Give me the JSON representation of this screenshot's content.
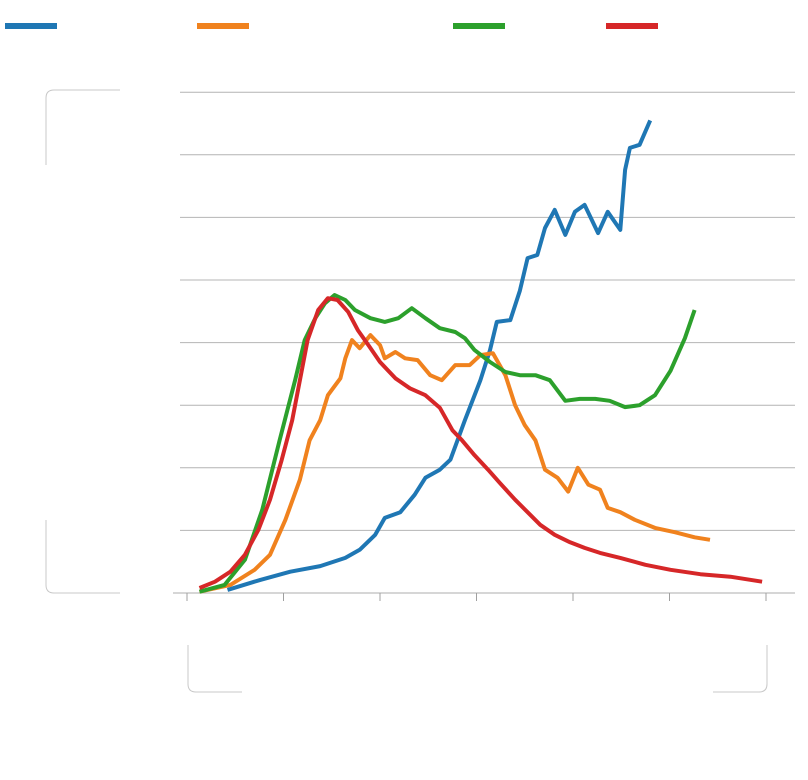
{
  "chart_data": {
    "type": "line",
    "title": "",
    "xlabel": "",
    "ylabel": "",
    "xlim": [
      0,
      6
    ],
    "ylim": [
      0,
      8
    ],
    "grid": true,
    "legend": "top",
    "series": [
      {
        "color": "#1f77b4",
        "points": [
          [
            0.42,
            0.05
          ],
          [
            0.76,
            0.21
          ],
          [
            1.07,
            0.34
          ],
          [
            1.38,
            0.43
          ],
          [
            1.64,
            0.56
          ],
          [
            1.79,
            0.69
          ],
          [
            1.95,
            0.93
          ],
          [
            2.05,
            1.2
          ],
          [
            2.21,
            1.29
          ],
          [
            2.36,
            1.57
          ],
          [
            2.47,
            1.84
          ],
          [
            2.62,
            1.97
          ],
          [
            2.73,
            2.13
          ],
          [
            2.88,
            2.76
          ],
          [
            3.04,
            3.4
          ],
          [
            3.14,
            3.88
          ],
          [
            3.21,
            4.33
          ],
          [
            3.35,
            4.36
          ],
          [
            3.45,
            4.83
          ],
          [
            3.53,
            5.35
          ],
          [
            3.63,
            5.4
          ],
          [
            3.71,
            5.83
          ],
          [
            3.81,
            6.12
          ],
          [
            3.92,
            5.72
          ],
          [
            4.02,
            6.09
          ],
          [
            4.12,
            6.2
          ],
          [
            4.26,
            5.75
          ],
          [
            4.36,
            6.09
          ],
          [
            4.49,
            5.8
          ],
          [
            4.54,
            6.76
          ],
          [
            4.59,
            7.11
          ],
          [
            4.69,
            7.16
          ],
          [
            4.8,
            7.55
          ]
        ]
      },
      {
        "color": "#f0821e",
        "points": [
          [
            0.13,
            0.02
          ],
          [
            0.45,
            0.13
          ],
          [
            0.7,
            0.37
          ],
          [
            0.86,
            0.61
          ],
          [
            1.02,
            1.17
          ],
          [
            1.17,
            1.81
          ],
          [
            1.27,
            2.44
          ],
          [
            1.38,
            2.76
          ],
          [
            1.46,
            3.16
          ],
          [
            1.59,
            3.43
          ],
          [
            1.64,
            3.75
          ],
          [
            1.71,
            4.04
          ],
          [
            1.79,
            3.91
          ],
          [
            1.9,
            4.12
          ],
          [
            2.0,
            3.96
          ],
          [
            2.05,
            3.75
          ],
          [
            2.16,
            3.85
          ],
          [
            2.26,
            3.75
          ],
          [
            2.39,
            3.72
          ],
          [
            2.52,
            3.48
          ],
          [
            2.64,
            3.4
          ],
          [
            2.78,
            3.64
          ],
          [
            2.93,
            3.64
          ],
          [
            3.04,
            3.8
          ],
          [
            3.17,
            3.83
          ],
          [
            3.3,
            3.48
          ],
          [
            3.4,
            3.0
          ],
          [
            3.5,
            2.68
          ],
          [
            3.61,
            2.44
          ],
          [
            3.71,
            1.97
          ],
          [
            3.84,
            1.84
          ],
          [
            3.95,
            1.62
          ],
          [
            4.05,
            2.0
          ],
          [
            4.16,
            1.73
          ],
          [
            4.28,
            1.65
          ],
          [
            4.36,
            1.36
          ],
          [
            4.49,
            1.29
          ],
          [
            4.64,
            1.17
          ],
          [
            4.85,
            1.04
          ],
          [
            5.06,
            0.97
          ],
          [
            5.26,
            0.89
          ],
          [
            5.42,
            0.85
          ]
        ]
      },
      {
        "color": "#2ca02c",
        "points": [
          [
            0.13,
            0.02
          ],
          [
            0.39,
            0.13
          ],
          [
            0.6,
            0.53
          ],
          [
            0.78,
            1.33
          ],
          [
            0.96,
            2.44
          ],
          [
            1.12,
            3.4
          ],
          [
            1.22,
            4.04
          ],
          [
            1.33,
            4.39
          ],
          [
            1.43,
            4.63
          ],
          [
            1.53,
            4.76
          ],
          [
            1.64,
            4.68
          ],
          [
            1.74,
            4.52
          ],
          [
            1.9,
            4.39
          ],
          [
            2.05,
            4.33
          ],
          [
            2.19,
            4.39
          ],
          [
            2.33,
            4.55
          ],
          [
            2.47,
            4.39
          ],
          [
            2.62,
            4.23
          ],
          [
            2.78,
            4.17
          ],
          [
            2.88,
            4.07
          ],
          [
            2.98,
            3.88
          ],
          [
            3.14,
            3.69
          ],
          [
            3.3,
            3.53
          ],
          [
            3.45,
            3.48
          ],
          [
            3.61,
            3.48
          ],
          [
            3.76,
            3.4
          ],
          [
            3.92,
            3.07
          ],
          [
            4.07,
            3.1
          ],
          [
            4.23,
            3.1
          ],
          [
            4.38,
            3.07
          ],
          [
            4.54,
            2.97
          ],
          [
            4.69,
            3.0
          ],
          [
            4.85,
            3.16
          ],
          [
            5.01,
            3.55
          ],
          [
            5.16,
            4.07
          ],
          [
            5.26,
            4.52
          ]
        ]
      },
      {
        "color": "#d62728",
        "points": [
          [
            0.13,
            0.08
          ],
          [
            0.29,
            0.18
          ],
          [
            0.45,
            0.34
          ],
          [
            0.6,
            0.61
          ],
          [
            0.74,
            1.01
          ],
          [
            0.86,
            1.49
          ],
          [
            0.98,
            2.12
          ],
          [
            1.09,
            2.76
          ],
          [
            1.17,
            3.4
          ],
          [
            1.25,
            4.04
          ],
          [
            1.36,
            4.52
          ],
          [
            1.46,
            4.71
          ],
          [
            1.56,
            4.68
          ],
          [
            1.67,
            4.49
          ],
          [
            1.77,
            4.2
          ],
          [
            1.88,
            3.96
          ],
          [
            2.0,
            3.69
          ],
          [
            2.16,
            3.43
          ],
          [
            2.31,
            3.27
          ],
          [
            2.47,
            3.16
          ],
          [
            2.62,
            2.96
          ],
          [
            2.75,
            2.6
          ],
          [
            2.85,
            2.44
          ],
          [
            2.98,
            2.2
          ],
          [
            3.12,
            1.97
          ],
          [
            3.24,
            1.76
          ],
          [
            3.4,
            1.49
          ],
          [
            3.53,
            1.29
          ],
          [
            3.66,
            1.09
          ],
          [
            3.81,
            0.93
          ],
          [
            3.97,
            0.81
          ],
          [
            4.12,
            0.72
          ],
          [
            4.28,
            0.64
          ],
          [
            4.49,
            0.56
          ],
          [
            4.75,
            0.45
          ],
          [
            5.01,
            0.37
          ],
          [
            5.32,
            0.3
          ],
          [
            5.63,
            0.26
          ],
          [
            5.96,
            0.18
          ]
        ]
      }
    ]
  }
}
